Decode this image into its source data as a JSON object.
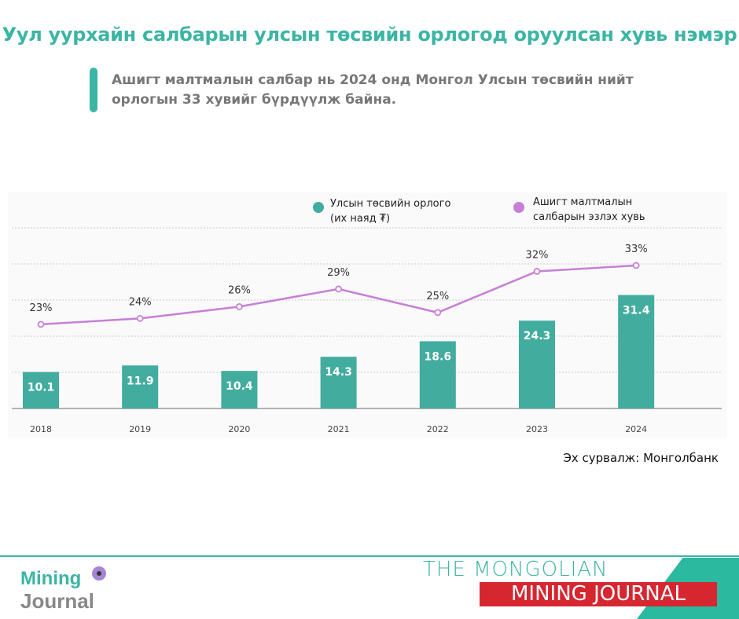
{
  "title": "Уул уурхайн салбарын улсын төсвийн орлогод оруулсан хувь нэмэр",
  "subtitle": "Ашигт малтмалын салбар нь 2024 онд Монгол Улсын төсвийн нийт орлогын 33 хувийг бүрдүүлж байна.",
  "source": "Эх сурвалж: Монголбанк",
  "footer": {
    "line1": "THE MONGOLIAN",
    "line2": "MINING JOURNAL",
    "logo_top": "Mining",
    "logo_bottom": "Journal"
  },
  "colors": {
    "bar": "#42ac9e",
    "line": "#c77fd6",
    "accent": "#3bb5a4",
    "red": "#d62630"
  },
  "chart_data": {
    "type": "bar+line",
    "categories": [
      "2018",
      "2019",
      "2020",
      "2021",
      "2022",
      "2023",
      "2024"
    ],
    "series": [
      {
        "name": "Улсын төсвийн орлого (их наяд ₮)",
        "legend_line1": "Улсын төсвийн орлого",
        "legend_line2": "(их наяд ₮)",
        "type": "bar",
        "values": [
          10.1,
          11.9,
          10.4,
          14.3,
          18.6,
          24.3,
          31.4
        ],
        "labels": [
          "10.1",
          "11.9",
          "10.4",
          "14.3",
          "18.6",
          "24.3",
          "31.4"
        ]
      },
      {
        "name": "Ашигт малтмалын салбарын эзлэх хувь",
        "legend_line1": "Ашигт малтмалын",
        "legend_line2": "салбарын эзлэх хувь",
        "type": "line",
        "values": [
          23,
          24,
          26,
          29,
          25,
          32,
          33
        ],
        "labels": [
          "23%",
          "24%",
          "26%",
          "29%",
          "25%",
          "32%",
          "33%"
        ]
      }
    ],
    "ylim": [
      0,
      50
    ],
    "ylim_secondary": [
      8.7,
      39.4
    ],
    "grid": true,
    "legend": "top-right"
  }
}
